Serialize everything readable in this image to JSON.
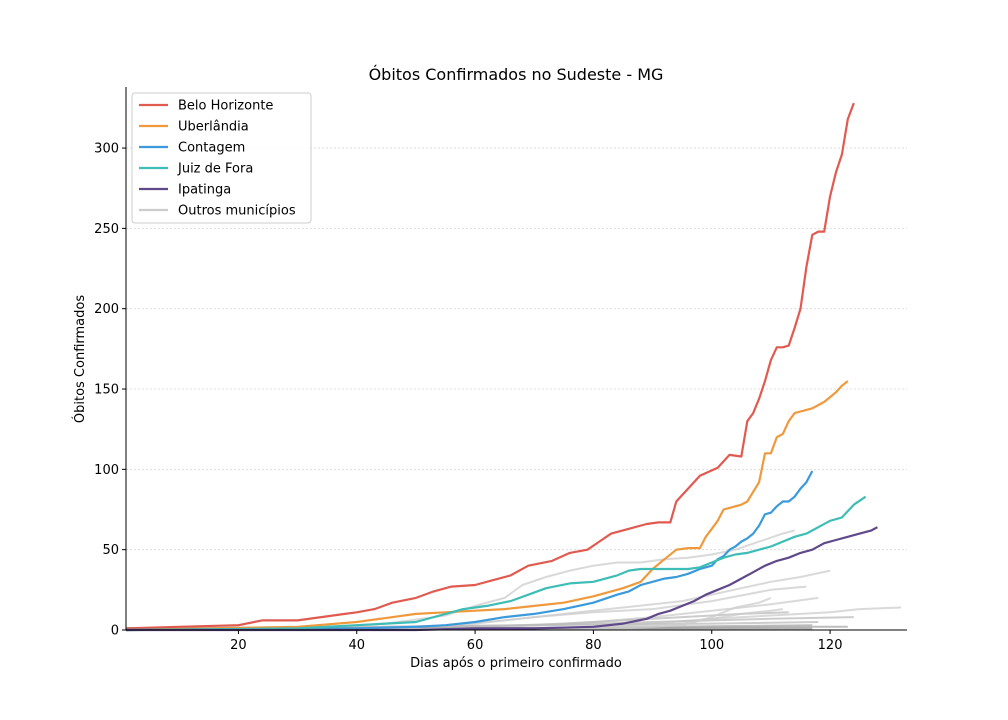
{
  "chart_data": {
    "type": "line",
    "title": "Óbitos Confirmados no Sudeste - MG",
    "xlabel": "Dias após o primeiro confirmado",
    "ylabel": "Óbitos Confirmados",
    "xlim": [
      1,
      133
    ],
    "ylim": [
      0,
      338
    ],
    "xticks": [
      20,
      40,
      60,
      80,
      100,
      120
    ],
    "yticks": [
      0,
      50,
      100,
      150,
      200,
      250,
      300
    ],
    "grid": "horizontal",
    "legend_position": "top-left",
    "series": [
      {
        "name": "Belo Horizonte",
        "color": "#e15a50",
        "highlight": true,
        "x": [
          1,
          10,
          20,
          24,
          30,
          34,
          38,
          40,
          43,
          46,
          50,
          53,
          56,
          60,
          63,
          66,
          69,
          73,
          76,
          79,
          81,
          83,
          86,
          89,
          91,
          93,
          94,
          96,
          98,
          101,
          103,
          105,
          106,
          107,
          108,
          109,
          110,
          111,
          112,
          113,
          114,
          115,
          116,
          117,
          118,
          119,
          120,
          121,
          122,
          123,
          124
        ],
        "y": [
          1,
          2,
          3,
          6,
          6,
          8,
          10,
          11,
          13,
          17,
          20,
          24,
          27,
          28,
          31,
          34,
          40,
          43,
          48,
          50,
          55,
          60,
          63,
          66,
          67,
          67,
          80,
          88,
          96,
          101,
          109,
          108,
          130,
          135,
          144,
          155,
          168,
          176,
          176,
          177,
          188,
          200,
          226,
          246,
          248,
          248,
          270,
          285,
          296,
          318,
          328
        ]
      },
      {
        "name": "Uberlândia",
        "color": "#f0993c",
        "highlight": true,
        "x": [
          1,
          30,
          40,
          50,
          55,
          60,
          65,
          70,
          75,
          80,
          85,
          88,
          90,
          92,
          94,
          96,
          98,
          99,
          100,
          101,
          102,
          103,
          104,
          105,
          106,
          107,
          108,
          109,
          110,
          111,
          112,
          113,
          114,
          115,
          116,
          117,
          118,
          119,
          120,
          121,
          122,
          123
        ],
        "y": [
          0,
          2,
          5,
          10,
          11,
          12,
          13,
          15,
          17,
          21,
          26,
          30,
          38,
          44,
          50,
          51,
          51,
          58,
          63,
          68,
          75,
          76,
          77,
          78,
          80,
          86,
          92,
          110,
          110,
          120,
          122,
          130,
          135,
          136,
          137,
          138,
          140,
          142,
          145,
          148,
          152,
          155
        ]
      },
      {
        "name": "Contagem",
        "color": "#3a9adb",
        "highlight": true,
        "x": [
          1,
          40,
          50,
          55,
          60,
          65,
          70,
          75,
          80,
          84,
          86,
          88,
          90,
          92,
          94,
          96,
          98,
          100,
          101,
          102,
          103,
          104,
          105,
          106,
          107,
          108,
          109,
          110,
          111,
          112,
          113,
          114,
          115,
          116,
          117
        ],
        "y": [
          0,
          1,
          2,
          3,
          5,
          8,
          10,
          13,
          17,
          22,
          24,
          28,
          30,
          32,
          33,
          35,
          38,
          40,
          44,
          46,
          50,
          52,
          55,
          57,
          60,
          65,
          72,
          73,
          77,
          80,
          80,
          83,
          88,
          92,
          99
        ]
      },
      {
        "name": "Juiz de Fora",
        "color": "#3dbdb6",
        "highlight": true,
        "x": [
          1,
          30,
          40,
          50,
          55,
          58,
          62,
          66,
          69,
          72,
          76,
          80,
          84,
          86,
          88,
          90,
          92,
          94,
          96,
          98,
          100,
          102,
          104,
          106,
          108,
          110,
          112,
          114,
          116,
          118,
          120,
          122,
          124,
          126
        ],
        "y": [
          0,
          1,
          3,
          5,
          10,
          13,
          15,
          18,
          22,
          26,
          29,
          30,
          34,
          37,
          38,
          38,
          38,
          38,
          38,
          39,
          42,
          45,
          47,
          48,
          50,
          52,
          55,
          58,
          60,
          64,
          68,
          70,
          78,
          83
        ]
      },
      {
        "name": "Ipatinga",
        "color": "#60498a",
        "highlight": true,
        "x": [
          1,
          50,
          60,
          70,
          80,
          85,
          89,
          91,
          93,
          95,
          97,
          99,
          101,
          103,
          105,
          107,
          109,
          111,
          113,
          115,
          117,
          119,
          121,
          123,
          125,
          127,
          128
        ],
        "y": [
          0,
          0,
          1,
          1,
          2,
          4,
          7,
          10,
          12,
          15,
          18,
          22,
          25,
          28,
          32,
          36,
          40,
          43,
          45,
          48,
          50,
          54,
          56,
          58,
          60,
          62,
          64
        ]
      },
      {
        "name": "Outros municípios",
        "color": "#cccccc",
        "highlight": false,
        "x": [
          1,
          30,
          45,
          55,
          60,
          65,
          68,
          72,
          76,
          80,
          84,
          88,
          92,
          96,
          100,
          104,
          108,
          112,
          114
        ],
        "y": [
          0,
          1,
          4,
          9,
          15,
          20,
          28,
          33,
          37,
          40,
          42,
          42,
          44,
          45,
          47,
          50,
          55,
          60,
          62
        ]
      },
      {
        "name": "",
        "color": "#cccccc",
        "highlight": false,
        "x": [
          1,
          40,
          55,
          65,
          75,
          85,
          95,
          100,
          105,
          110,
          115,
          120
        ],
        "y": [
          0,
          1,
          3,
          6,
          10,
          14,
          18,
          22,
          26,
          30,
          33,
          37
        ]
      },
      {
        "name": "",
        "color": "#cccccc",
        "highlight": false,
        "x": [
          1,
          50,
          60,
          70,
          80,
          90,
          100,
          110,
          116
        ],
        "y": [
          0,
          1,
          4,
          8,
          11,
          13,
          18,
          25,
          27
        ]
      },
      {
        "name": "",
        "color": "#cccccc",
        "highlight": false,
        "x": [
          1,
          60,
          70,
          80,
          90,
          100,
          110,
          118
        ],
        "y": [
          0,
          1,
          3,
          5,
          8,
          12,
          16,
          20
        ]
      },
      {
        "name": "",
        "color": "#cccccc",
        "highlight": false,
        "x": [
          1,
          70,
          80,
          90,
          100,
          110,
          120,
          125,
          132
        ],
        "y": [
          0,
          1,
          2,
          4,
          7,
          9,
          11,
          13,
          14
        ]
      },
      {
        "name": "",
        "color": "#bbbbbb",
        "highlight": false,
        "x": [
          1,
          60,
          75,
          85,
          95,
          105,
          113
        ],
        "y": [
          0,
          2,
          4,
          6,
          8,
          10,
          11
        ]
      },
      {
        "name": "",
        "color": "#bbbbbb",
        "highlight": false,
        "x": [
          1,
          50,
          70,
          90,
          110,
          124
        ],
        "y": [
          1,
          2,
          3,
          5,
          7,
          8
        ]
      },
      {
        "name": "",
        "color": "#bbbbbb",
        "highlight": false,
        "x": [
          1,
          40,
          70,
          100,
          118
        ],
        "y": [
          1,
          2,
          3,
          4,
          5
        ]
      },
      {
        "name": "",
        "color": "#aaaaaa",
        "highlight": false,
        "x": [
          1,
          60,
          90,
          117
        ],
        "y": [
          1,
          1,
          2,
          3
        ]
      },
      {
        "name": "",
        "color": "#aaaaaa",
        "highlight": false,
        "x": [
          1,
          80,
          110,
          123
        ],
        "y": [
          0,
          1,
          2,
          2
        ]
      },
      {
        "name": "",
        "color": "#999999",
        "highlight": false,
        "x": [
          1,
          117
        ],
        "y": [
          1,
          1
        ]
      },
      {
        "name": "",
        "color": "#cccccc",
        "highlight": false,
        "x": [
          1,
          85,
          95,
          100,
          104,
          108,
          110
        ],
        "y": [
          0,
          1,
          3,
          8,
          14,
          17,
          20
        ]
      },
      {
        "name": "",
        "color": "#cccccc",
        "highlight": false,
        "x": [
          1,
          75,
          85,
          95,
          100,
          105,
          110,
          112
        ],
        "y": [
          0,
          1,
          2,
          4,
          7,
          10,
          12,
          13
        ]
      }
    ]
  }
}
